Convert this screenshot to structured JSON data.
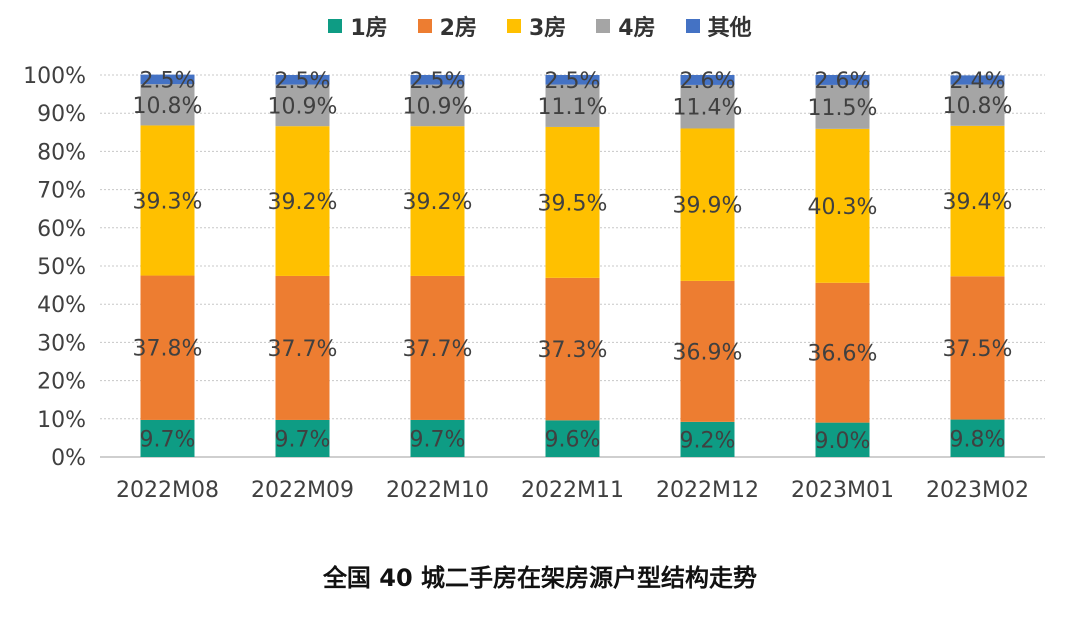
{
  "chart_data": {
    "type": "stacked-bar-100",
    "categories": [
      "2022M08",
      "2022M09",
      "2022M10",
      "2022M11",
      "2022M12",
      "2023M01",
      "2023M02"
    ],
    "series": [
      {
        "name": "1房",
        "color": "#0E9C84",
        "values": [
          9.7,
          9.7,
          9.7,
          9.6,
          9.2,
          9.0,
          9.8
        ],
        "labels": [
          "9.7%",
          "9.7%",
          "9.7%",
          "9.6%",
          "9.2%",
          "9.0%",
          "9.8%"
        ]
      },
      {
        "name": "2房",
        "color": "#ED7D31",
        "values": [
          37.8,
          37.7,
          37.7,
          37.3,
          36.9,
          36.6,
          37.5
        ],
        "labels": [
          "37.8%",
          "37.7%",
          "37.7%",
          "37.3%",
          "36.9%",
          "36.6%",
          "37.5%"
        ]
      },
      {
        "name": "3房",
        "color": "#FFC000",
        "values": [
          39.3,
          39.2,
          39.2,
          39.5,
          39.9,
          40.3,
          39.4
        ],
        "labels": [
          "39.3%",
          "39.2%",
          "39.2%",
          "39.5%",
          "39.9%",
          "40.3%",
          "39.4%"
        ]
      },
      {
        "name": "4房",
        "color": "#A5A5A5",
        "values": [
          10.8,
          10.9,
          10.9,
          11.1,
          11.4,
          11.5,
          10.8
        ],
        "labels": [
          "10.8%",
          "10.9%",
          "10.9%",
          "11.1%",
          "11.4%",
          "11.5%",
          "10.8%"
        ]
      },
      {
        "name": "其他",
        "color": "#4472C4",
        "values": [
          2.5,
          2.5,
          2.5,
          2.5,
          2.6,
          2.6,
          2.4
        ],
        "labels": [
          "2.5%",
          "2.5%",
          "2.5%",
          "2.5%",
          "2.6%",
          "2.6%",
          "2.4%"
        ]
      }
    ],
    "y_ticks": [
      0,
      10,
      20,
      30,
      40,
      50,
      60,
      70,
      80,
      90,
      100
    ],
    "y_tick_labels": [
      "0%",
      "10%",
      "20%",
      "30%",
      "40%",
      "50%",
      "60%",
      "70%",
      "80%",
      "90%",
      "100%"
    ],
    "ylim": [
      0,
      100
    ],
    "legend_position": "top-center",
    "grid": true,
    "title": "全国 40 城二手房在架房源户型结构走势"
  }
}
